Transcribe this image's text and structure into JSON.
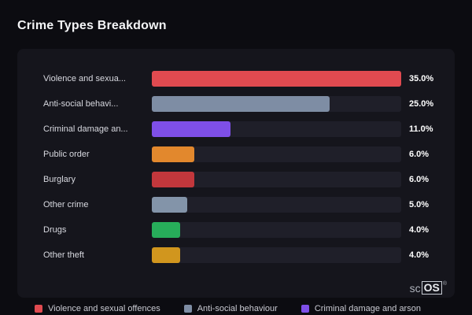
{
  "page": {
    "title": "Crime Types Breakdown",
    "background_color": "#0c0c11",
    "card_color": "#15151c",
    "track_color": "#1f1f29"
  },
  "chart_data": {
    "type": "bar",
    "orientation": "horizontal",
    "title": "Crime Types Breakdown",
    "categories": [
      "Violence and sexua...",
      "Anti-social behavi...",
      "Criminal damage an...",
      "Public order",
      "Burglary",
      "Other crime",
      "Drugs",
      "Other theft"
    ],
    "values": [
      35.0,
      25.0,
      11.0,
      6.0,
      6.0,
      5.0,
      4.0,
      4.0
    ],
    "value_labels": [
      "35.0%",
      "25.0%",
      "11.0%",
      "6.0%",
      "6.0%",
      "5.0%",
      "4.0%",
      "4.0%"
    ],
    "bar_colors": [
      "#e04a50",
      "#7e8da4",
      "#7e4fe8",
      "#e2882d",
      "#c2373c",
      "#8394a9",
      "#27ad5a",
      "#d1961e"
    ],
    "xlim": [
      0,
      35
    ],
    "grid": false,
    "legend_position": "bottom",
    "legend": [
      {
        "label": "Violence and sexual offences",
        "color": "#e04a50"
      },
      {
        "label": "Anti-social behaviour",
        "color": "#7e8da4"
      },
      {
        "label": "Criminal damage and arson",
        "color": "#7e4fe8"
      }
    ]
  },
  "branding": {
    "prefix": "sc",
    "box": "OS",
    "registered": "®"
  }
}
